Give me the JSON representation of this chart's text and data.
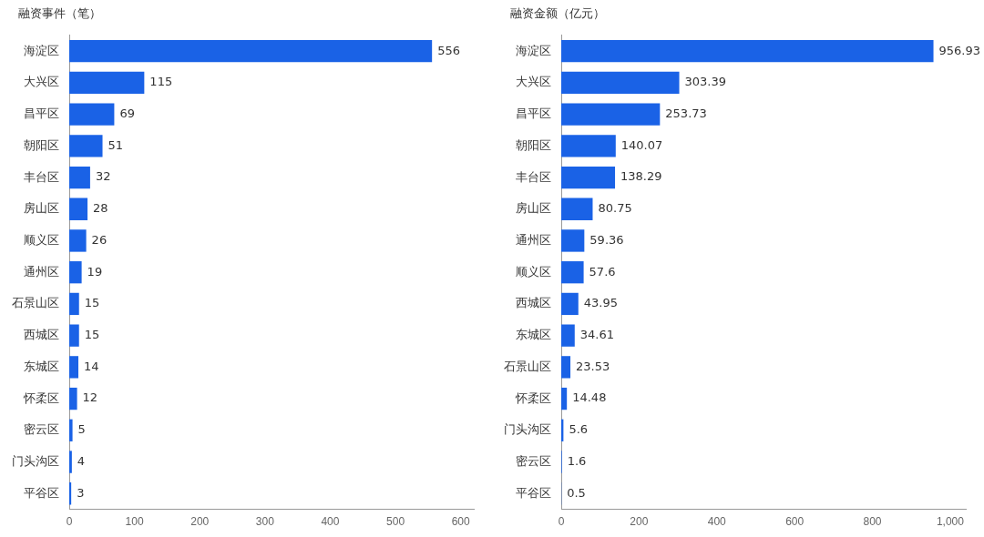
{
  "chart_data": [
    {
      "type": "bar",
      "orientation": "horizontal",
      "title": "融资事件（笔）",
      "categories": [
        "海淀区",
        "大兴区",
        "昌平区",
        "朝阳区",
        "丰台区",
        "房山区",
        "顺义区",
        "通州区",
        "石景山区",
        "西城区",
        "东城区",
        "怀柔区",
        "密云区",
        "门头沟区",
        "平谷区"
      ],
      "values": [
        556,
        115,
        69,
        51,
        32,
        28,
        26,
        19,
        15,
        15,
        14,
        12,
        5,
        4,
        3
      ],
      "color": "#1a62e6",
      "xlim": [
        0,
        620
      ],
      "xticks": [
        0,
        100,
        200,
        300,
        400,
        500,
        600
      ],
      "data_labels": true,
      "grid": false
    },
    {
      "type": "bar",
      "orientation": "horizontal",
      "title": "融资金额（亿元）",
      "categories": [
        "海淀区",
        "大兴区",
        "昌平区",
        "朝阳区",
        "丰台区",
        "房山区",
        "通州区",
        "顺义区",
        "西城区",
        "东城区",
        "石景山区",
        "怀柔区",
        "门头沟区",
        "密云区",
        "平谷区"
      ],
      "values": [
        956.93,
        303.39,
        253.73,
        140.07,
        138.29,
        80.75,
        59.36,
        57.6,
        43.95,
        34.61,
        23.53,
        14.48,
        5.6,
        1.6,
        0.5
      ],
      "color": "#1a62e6",
      "xlim": [
        0,
        1040
      ],
      "xticks": [
        0,
        200,
        400,
        600,
        800,
        {
          "value": 1000,
          "label": "1,000"
        }
      ],
      "data_labels": true,
      "grid": false
    }
  ]
}
